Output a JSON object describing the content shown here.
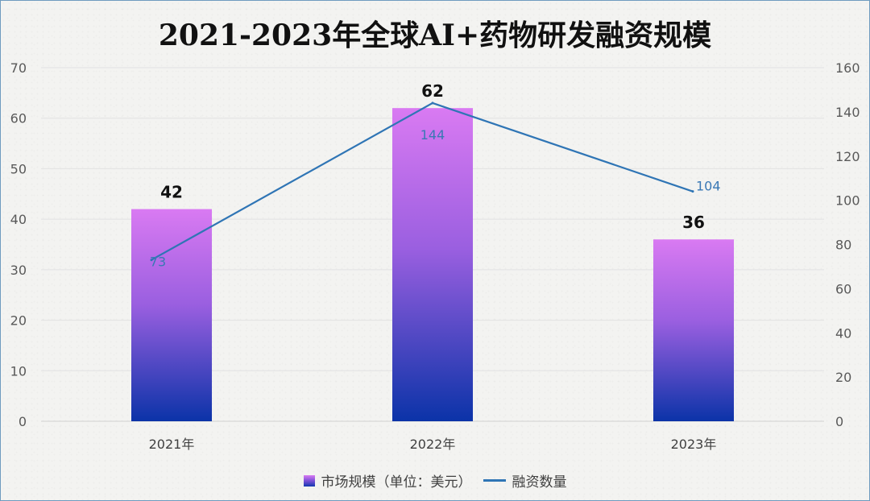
{
  "chart_data": {
    "type": "bar+line",
    "title": "2021-2023年全球AI+药物研发融资规模",
    "categories": [
      "2021年",
      "2022年",
      "2023年"
    ],
    "series": [
      {
        "name": "市场规模（单位：美元）",
        "type": "bar",
        "axis": "left",
        "values": [
          42,
          62,
          36
        ]
      },
      {
        "name": "融资数量",
        "type": "line",
        "axis": "right",
        "values": [
          73,
          144,
          104
        ]
      }
    ],
    "left_axis": {
      "ylim": [
        0,
        70
      ],
      "ticks": [
        "0",
        "10",
        "20",
        "30",
        "40",
        "50",
        "60",
        "70"
      ]
    },
    "right_axis": {
      "ylim": [
        0,
        160
      ],
      "ticks": [
        "0",
        "20",
        "40",
        "60",
        "80",
        "100",
        "120",
        "140",
        "160"
      ]
    },
    "grid": true,
    "legend_position": "bottom",
    "colors": {
      "bar_top": "#d97af2",
      "bar_bottom": "#0b33a8",
      "line": "#2f75b5",
      "line_label": "#3a78b5"
    }
  }
}
